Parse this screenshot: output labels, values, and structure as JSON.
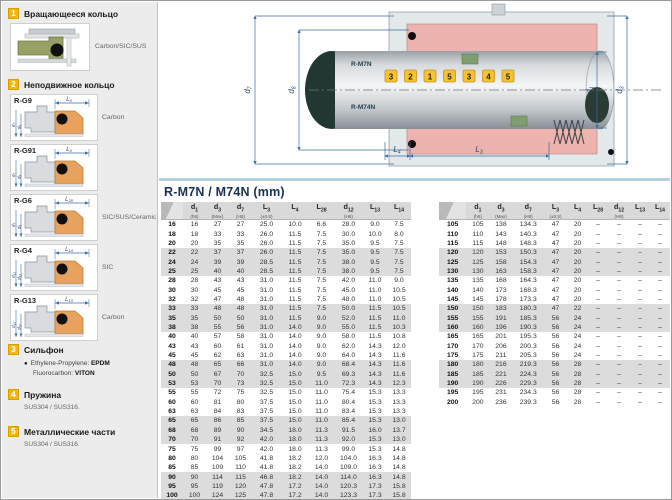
{
  "sidebar": {
    "items": [
      {
        "num": "1",
        "title": "Вращающееся кольцо",
        "material": "Carbon/SIC/SUS"
      },
      {
        "num": "2",
        "title": "Неподвижное кольцо"
      },
      {
        "num": "3",
        "title": "Сильфон"
      },
      {
        "num": "4",
        "title": "Пружина",
        "note": "SUS304 / SUS316."
      },
      {
        "num": "5",
        "title": "Металлические части",
        "note": "SUS304 / SUS316."
      }
    ],
    "bellows_lines": [
      {
        "label": "Ethylene-Propylene: ",
        "value": "EPDM"
      },
      {
        "label": "Fluorocarbon: ",
        "value": "VITON"
      }
    ],
    "variants": [
      {
        "label": "R-G9",
        "dim_top": "L4",
        "dims_left": [
          "d7",
          "d8"
        ],
        "material": "Carbon"
      },
      {
        "label": "R-G91",
        "dim_top": "L4",
        "dims_left": [
          "d7",
          "d8"
        ],
        "material": ""
      },
      {
        "label": "R-G6",
        "dim_top": "L28",
        "dims_left": [
          "d7",
          "d8"
        ],
        "material": "SIC/SUS/Ceramic"
      },
      {
        "label": "R-G4",
        "dim_top": "L14",
        "dims_left": [
          "d12",
          "d11"
        ],
        "material": "SIC"
      },
      {
        "label": "R-G13",
        "dim_top": "L13",
        "dims_left": [
          "d12",
          "d11"
        ],
        "material": "Carbon"
      }
    ]
  },
  "diagram": {
    "shaft_labels": [
      "R-M7N",
      "R-M74N"
    ],
    "balloons": [
      "3",
      "2",
      "1",
      "5",
      "3",
      "4",
      "5"
    ],
    "dims_left": [
      "d7",
      "d8"
    ],
    "dims_right": [
      "d1",
      "d3"
    ],
    "dims_bottom": [
      "L4",
      "L3"
    ]
  },
  "table": {
    "title": "R-M7N / M74N (mm)",
    "columns": [
      {
        "name": "d1",
        "sub": "(h6)"
      },
      {
        "name": "d3",
        "sub": "(Max)"
      },
      {
        "name": "d7",
        "sub": "(H8)"
      },
      {
        "name": "L3",
        "sub": "(±0.5)"
      },
      {
        "name": "L4",
        "sub": ""
      },
      {
        "name": "L28",
        "sub": ""
      },
      {
        "name": "d12",
        "sub": "(H8)"
      },
      {
        "name": "L13",
        "sub": ""
      },
      {
        "name": "L14",
        "sub": ""
      }
    ],
    "left_rows": [
      [
        "16",
        "16",
        "27",
        "27",
        "25.0",
        "10.0",
        "6.6",
        "28.0",
        "9.0",
        "7.5"
      ],
      [
        "18",
        "18",
        "33",
        "33",
        "26.0",
        "11.5",
        "7.5",
        "30.0",
        "10.0",
        "8.0"
      ],
      [
        "20",
        "20",
        "35",
        "35",
        "26.0",
        "11.5",
        "7.5",
        "35.0",
        "9.5",
        "7.5"
      ],
      [
        "22",
        "22",
        "37",
        "37",
        "26.0",
        "11.5",
        "7.5",
        "35.0",
        "9.5",
        "7.5"
      ],
      [
        "24",
        "24",
        "39",
        "39",
        "28.5",
        "11.5",
        "7.5",
        "38.0",
        "9.5",
        "7.5"
      ],
      [
        "25",
        "25",
        "40",
        "40",
        "28.5",
        "11.5",
        "7.5",
        "38.0",
        "9.5",
        "7.5"
      ],
      [
        "28",
        "28",
        "43",
        "43",
        "31.0",
        "11.5",
        "7.5",
        "42.0",
        "11.0",
        "9.0"
      ],
      [
        "30",
        "30",
        "45",
        "45",
        "31.0",
        "11.5",
        "7.5",
        "45.0",
        "11.0",
        "10.5"
      ],
      [
        "32",
        "32",
        "47",
        "48",
        "31.0",
        "11.5",
        "7.5",
        "48.0",
        "11.0",
        "10.5"
      ],
      [
        "33",
        "33",
        "48",
        "48",
        "31.0",
        "11.5",
        "7.5",
        "50.0",
        "11.5",
        "10.5"
      ],
      [
        "35",
        "35",
        "50",
        "50",
        "31.0",
        "11.5",
        "9.0",
        "52.0",
        "11.5",
        "11.0"
      ],
      [
        "38",
        "38",
        "55",
        "56",
        "31.0",
        "14.0",
        "9.0",
        "55.0",
        "11.5",
        "10.3"
      ],
      [
        "40",
        "40",
        "57",
        "58",
        "31.0",
        "14.0",
        "9.0",
        "58.0",
        "11.5",
        "10.8"
      ],
      [
        "43",
        "43",
        "60",
        "61",
        "31.0",
        "14.0",
        "9.0",
        "62.0",
        "14.3",
        "12.0"
      ],
      [
        "45",
        "45",
        "62",
        "63",
        "31.0",
        "14.0",
        "9.0",
        "64.0",
        "14.3",
        "11.6"
      ],
      [
        "48",
        "48",
        "65",
        "66",
        "31.0",
        "14.0",
        "9.0",
        "68.4",
        "14.3",
        "11.6"
      ],
      [
        "50",
        "50",
        "67",
        "70",
        "32.5",
        "15.0",
        "9.5",
        "69.3",
        "14.3",
        "11.6"
      ],
      [
        "53",
        "53",
        "70",
        "73",
        "32.5",
        "15.0",
        "11.0",
        "72.3",
        "14.3",
        "12.3"
      ],
      [
        "55",
        "55",
        "72",
        "75",
        "32.5",
        "15.0",
        "11.0",
        "75.4",
        "15.3",
        "13.3"
      ],
      [
        "60",
        "60",
        "81",
        "80",
        "37.5",
        "15.0",
        "11.0",
        "80.4",
        "15.3",
        "13.3"
      ],
      [
        "63",
        "63",
        "84",
        "83",
        "37.5",
        "15.0",
        "11.0",
        "83.4",
        "15.3",
        "13.3"
      ],
      [
        "65",
        "65",
        "86",
        "85",
        "37.5",
        "15.0",
        "11.0",
        "85.4",
        "15.3",
        "13.0"
      ],
      [
        "68",
        "68",
        "89",
        "90",
        "34.5",
        "18.0",
        "11.3",
        "91.5",
        "16.0",
        "13.7"
      ],
      [
        "70",
        "70",
        "91",
        "92",
        "42.0",
        "18.0",
        "11.3",
        "92.0",
        "15.3",
        "13.0"
      ],
      [
        "75",
        "75",
        "99",
        "97",
        "42.0",
        "18.0",
        "11.3",
        "99.0",
        "15.3",
        "14.8"
      ],
      [
        "80",
        "80",
        "104",
        "105",
        "41.8",
        "18.2",
        "12.0",
        "104.0",
        "16.3",
        "14.8"
      ],
      [
        "85",
        "85",
        "109",
        "110",
        "41.8",
        "18.2",
        "14.0",
        "109.0",
        "16.3",
        "14.8"
      ],
      [
        "90",
        "90",
        "114",
        "115",
        "46.8",
        "18.2",
        "14.0",
        "114.0",
        "16.3",
        "14.8"
      ],
      [
        "95",
        "95",
        "119",
        "120",
        "47.8",
        "17.2",
        "14.0",
        "120.3",
        "17.3",
        "15.8"
      ],
      [
        "100",
        "100",
        "124",
        "125",
        "47.8",
        "17.2",
        "14.0",
        "123.3",
        "17.3",
        "15.8"
      ]
    ],
    "right_rows": [
      [
        "105",
        "105",
        "138",
        "134.3",
        "47",
        "20",
        "–",
        "–",
        "–",
        "–"
      ],
      [
        "110",
        "110",
        "143",
        "140.3",
        "47",
        "20",
        "–",
        "–",
        "–",
        "–"
      ],
      [
        "115",
        "115",
        "148",
        "148.3",
        "47",
        "20",
        "–",
        "–",
        "–",
        "–"
      ],
      [
        "120",
        "120",
        "153",
        "150.3",
        "47",
        "20",
        "–",
        "–",
        "–",
        "–"
      ],
      [
        "125",
        "125",
        "158",
        "154.3",
        "47",
        "20",
        "–",
        "–",
        "–",
        "–"
      ],
      [
        "130",
        "130",
        "163",
        "158.3",
        "47",
        "20",
        "–",
        "–",
        "–",
        "–"
      ],
      [
        "135",
        "135",
        "168",
        "164.3",
        "47",
        "20",
        "–",
        "–",
        "–",
        "–"
      ],
      [
        "140",
        "140",
        "173",
        "168.3",
        "47",
        "20",
        "–",
        "–",
        "–",
        "–"
      ],
      [
        "145",
        "145",
        "178",
        "173.3",
        "47",
        "20",
        "–",
        "–",
        "–",
        "–"
      ],
      [
        "150",
        "150",
        "183",
        "180.3",
        "47",
        "22",
        "–",
        "–",
        "–",
        "–"
      ],
      [
        "155",
        "155",
        "191",
        "185.3",
        "56",
        "24",
        "–",
        "–",
        "–",
        "–"
      ],
      [
        "160",
        "160",
        "196",
        "190.3",
        "56",
        "24",
        "–",
        "–",
        "–",
        "–"
      ],
      [
        "165",
        "165",
        "201",
        "195.3",
        "56",
        "24",
        "–",
        "–",
        "–",
        "–"
      ],
      [
        "170",
        "170",
        "206",
        "200.3",
        "56",
        "24",
        "–",
        "–",
        "–",
        "–"
      ],
      [
        "175",
        "175",
        "211",
        "205.3",
        "56",
        "24",
        "–",
        "–",
        "–",
        "–"
      ],
      [
        "180",
        "180",
        "216",
        "219.3",
        "56",
        "28",
        "–",
        "–",
        "–",
        "–"
      ],
      [
        "185",
        "185",
        "221",
        "224.3",
        "56",
        "28",
        "–",
        "–",
        "–",
        "–"
      ],
      [
        "190",
        "190",
        "226",
        "229.3",
        "56",
        "28",
        "–",
        "–",
        "–",
        "–"
      ],
      [
        "195",
        "195",
        "231",
        "234.3",
        "56",
        "28",
        "–",
        "–",
        "–",
        "–"
      ],
      [
        "200",
        "200",
        "236",
        "239.3",
        "56",
        "28",
        "–",
        "–",
        "–",
        "–"
      ]
    ]
  }
}
